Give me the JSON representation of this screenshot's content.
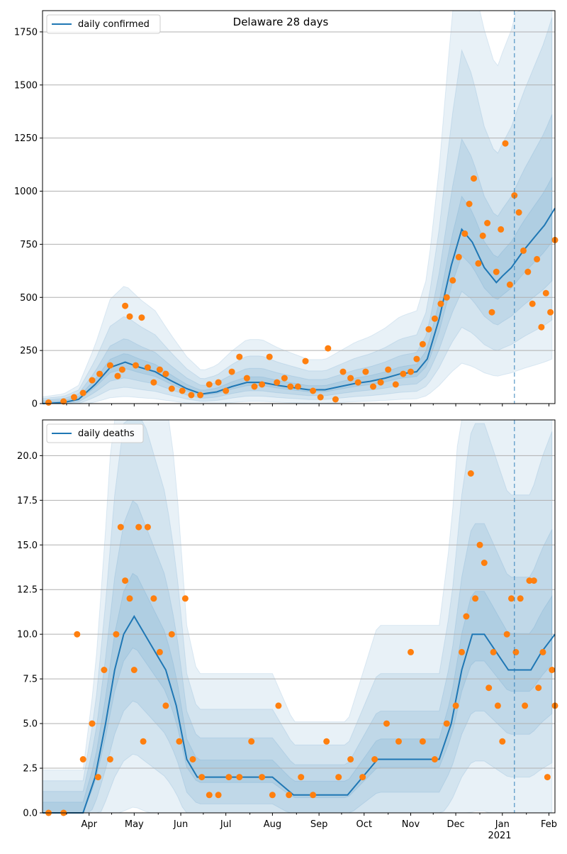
{
  "chart_data": [
    {
      "type": "line",
      "title": "Delaware 28 days",
      "legend": {
        "placement": "top-left",
        "entries": [
          "daily confirmed"
        ]
      },
      "grid": {
        "y": true,
        "x": false
      },
      "xlabel": "",
      "ylabel": "",
      "xlim": [
        "2020-03-01",
        "2021-02-05"
      ],
      "ylim": [
        0,
        1850
      ],
      "yticks": [
        0,
        250,
        500,
        750,
        1000,
        1250,
        1500,
        1750
      ],
      "ytick_labels": [
        "0",
        "250",
        "500",
        "750",
        "1000",
        "1250",
        "1500",
        "1750"
      ],
      "xticks": [
        "2020-04-01",
        "2020-05-01",
        "2020-06-01",
        "2020-07-01",
        "2020-08-01",
        "2020-09-01",
        "2020-10-01",
        "2020-11-01",
        "2020-12-01",
        "2021-01-01",
        "2021-02-01"
      ],
      "xtick_labels": [],
      "vline_date": "2021-01-09",
      "colors": {
        "line": "#1f77b4",
        "points": "#ff7f0e",
        "band": "#1f77b4",
        "vline": "#1f77b4"
      },
      "series": [
        {
          "name": "daily confirmed",
          "kind": "line",
          "x": [
            "2020-03-01",
            "2020-03-15",
            "2020-03-25",
            "2020-04-05",
            "2020-04-15",
            "2020-04-25",
            "2020-05-05",
            "2020-05-15",
            "2020-05-25",
            "2020-06-05",
            "2020-06-15",
            "2020-06-25",
            "2020-07-05",
            "2020-07-15",
            "2020-07-25",
            "2020-08-05",
            "2020-08-15",
            "2020-08-25",
            "2020-09-05",
            "2020-09-15",
            "2020-09-25",
            "2020-10-05",
            "2020-10-15",
            "2020-10-25",
            "2020-11-05",
            "2020-11-12",
            "2020-11-20",
            "2020-11-28",
            "2020-12-05",
            "2020-12-12",
            "2020-12-20",
            "2020-12-28",
            "2021-01-01",
            "2021-01-07",
            "2021-01-15",
            "2021-01-22",
            "2021-01-29",
            "2021-02-05"
          ],
          "values": [
            0,
            5,
            20,
            90,
            170,
            195,
            170,
            150,
            110,
            70,
            45,
            55,
            80,
            100,
            100,
            85,
            75,
            65,
            65,
            80,
            95,
            105,
            120,
            140,
            150,
            210,
            400,
            650,
            820,
            760,
            640,
            570,
            600,
            640,
            720,
            780,
            840,
            920
          ]
        },
        {
          "name": "",
          "kind": "scatter",
          "x": [
            "2020-03-05",
            "2020-03-15",
            "2020-03-22",
            "2020-03-28",
            "2020-04-03",
            "2020-04-08",
            "2020-04-15",
            "2020-04-20",
            "2020-04-23",
            "2020-04-25",
            "2020-04-28",
            "2020-05-02",
            "2020-05-06",
            "2020-05-10",
            "2020-05-14",
            "2020-05-18",
            "2020-05-22",
            "2020-05-26",
            "2020-06-02",
            "2020-06-08",
            "2020-06-14",
            "2020-06-20",
            "2020-06-26",
            "2020-07-01",
            "2020-07-05",
            "2020-07-10",
            "2020-07-15",
            "2020-07-20",
            "2020-07-25",
            "2020-07-30",
            "2020-08-04",
            "2020-08-09",
            "2020-08-13",
            "2020-08-18",
            "2020-08-23",
            "2020-08-28",
            "2020-09-02",
            "2020-09-07",
            "2020-09-12",
            "2020-09-17",
            "2020-09-22",
            "2020-09-27",
            "2020-10-02",
            "2020-10-07",
            "2020-10-12",
            "2020-10-17",
            "2020-10-22",
            "2020-10-27",
            "2020-11-01",
            "2020-11-05",
            "2020-11-09",
            "2020-11-13",
            "2020-11-17",
            "2020-11-21",
            "2020-11-25",
            "2020-11-29",
            "2020-12-03",
            "2020-12-07",
            "2020-12-10",
            "2020-12-13",
            "2020-12-16",
            "2020-12-19",
            "2020-12-22",
            "2020-12-25",
            "2020-12-28",
            "2020-12-31",
            "2021-01-03",
            "2021-01-06",
            "2021-01-09",
            "2021-01-12",
            "2021-01-15",
            "2021-01-18",
            "2021-01-21",
            "2021-01-24",
            "2021-01-27",
            "2021-01-30",
            "2021-02-02",
            "2021-02-05"
          ],
          "values": [
            5,
            10,
            30,
            50,
            110,
            140,
            180,
            130,
            160,
            460,
            410,
            180,
            405,
            170,
            100,
            160,
            140,
            70,
            60,
            40,
            40,
            90,
            100,
            60,
            150,
            220,
            120,
            80,
            90,
            220,
            100,
            120,
            80,
            80,
            200,
            60,
            30,
            260,
            20,
            150,
            120,
            100,
            150,
            80,
            100,
            160,
            90,
            140,
            150,
            210,
            280,
            350,
            400,
            470,
            500,
            580,
            690,
            800,
            940,
            1060,
            660,
            790,
            850,
            430,
            620,
            820,
            1225,
            560,
            980,
            900,
            720,
            620,
            470,
            680,
            360,
            520,
            430,
            770
          ]
        }
      ]
    },
    {
      "type": "line",
      "title": "",
      "legend": {
        "placement": "top-left",
        "entries": [
          "daily deaths"
        ]
      },
      "grid": {
        "y": true,
        "x": false
      },
      "xlabel": "",
      "ylabel": "",
      "xlim": [
        "2020-03-01",
        "2021-02-05"
      ],
      "ylim": [
        0,
        22
      ],
      "yticks": [
        0,
        2.5,
        5,
        7.5,
        10,
        12.5,
        15,
        17.5,
        20
      ],
      "ytick_labels": [
        "0.0",
        "2.5",
        "5.0",
        "7.5",
        "10.0",
        "12.5",
        "15.0",
        "17.5",
        "20.0"
      ],
      "xticks": [
        "2020-04-01",
        "2020-05-01",
        "2020-06-01",
        "2020-07-01",
        "2020-08-01",
        "2020-09-01",
        "2020-10-01",
        "2020-11-01",
        "2020-12-01",
        "2021-01-01",
        "2021-02-01"
      ],
      "xtick_labels": [
        "Apr",
        "May",
        "Jun",
        "Jul",
        "Aug",
        "Sep",
        "Oct",
        "Nov",
        "Dec",
        "Jan",
        "Feb"
      ],
      "xtick_year": "2021",
      "vline_date": "2021-01-09",
      "colors": {
        "line": "#1f77b4",
        "points": "#ff7f0e",
        "band": "#1f77b4",
        "vline": "#1f77b4"
      },
      "series": [
        {
          "name": "daily deaths",
          "kind": "line",
          "x": [
            "2020-03-01",
            "2020-03-20",
            "2020-03-28",
            "2020-04-05",
            "2020-04-12",
            "2020-04-18",
            "2020-04-24",
            "2020-05-01",
            "2020-05-08",
            "2020-05-15",
            "2020-05-22",
            "2020-05-29",
            "2020-06-05",
            "2020-06-12",
            "2020-06-20",
            "2020-06-30",
            "2020-07-15",
            "2020-08-01",
            "2020-08-15",
            "2020-08-25",
            "2020-09-05",
            "2020-09-20",
            "2020-09-30",
            "2020-10-10",
            "2020-10-20",
            "2020-10-30",
            "2020-11-10",
            "2020-11-20",
            "2020-11-28",
            "2020-12-05",
            "2020-12-12",
            "2020-12-20",
            "2020-12-28",
            "2021-01-05",
            "2021-01-12",
            "2021-01-20",
            "2021-01-27",
            "2021-02-05"
          ],
          "values": [
            0,
            0,
            0,
            2,
            5,
            8,
            10,
            11,
            10,
            9,
            8,
            6,
            3,
            2,
            2,
            2,
            2,
            2,
            1,
            1,
            1,
            1,
            2,
            3,
            3,
            3,
            3,
            3,
            5,
            8,
            10,
            10,
            9,
            8,
            8,
            8,
            9,
            10
          ]
        },
        {
          "name": "",
          "kind": "scatter",
          "x": [
            "2020-03-05",
            "2020-03-15",
            "2020-03-24",
            "2020-03-28",
            "2020-04-03",
            "2020-04-07",
            "2020-04-11",
            "2020-04-15",
            "2020-04-19",
            "2020-04-22",
            "2020-04-25",
            "2020-04-28",
            "2020-05-01",
            "2020-05-04",
            "2020-05-07",
            "2020-05-10",
            "2020-05-14",
            "2020-05-18",
            "2020-05-22",
            "2020-05-26",
            "2020-05-31",
            "2020-06-04",
            "2020-06-09",
            "2020-06-15",
            "2020-06-20",
            "2020-06-26",
            "2020-07-03",
            "2020-07-10",
            "2020-07-18",
            "2020-07-25",
            "2020-08-01",
            "2020-08-05",
            "2020-08-12",
            "2020-08-20",
            "2020-08-28",
            "2020-09-06",
            "2020-09-14",
            "2020-09-22",
            "2020-09-30",
            "2020-10-08",
            "2020-10-16",
            "2020-10-24",
            "2020-11-01",
            "2020-11-09",
            "2020-11-17",
            "2020-11-25",
            "2020-12-01",
            "2020-12-05",
            "2020-12-08",
            "2020-12-11",
            "2020-12-14",
            "2020-12-17",
            "2020-12-20",
            "2020-12-23",
            "2020-12-26",
            "2020-12-29",
            "2021-01-01",
            "2021-01-04",
            "2021-01-07",
            "2021-01-10",
            "2021-01-13",
            "2021-01-16",
            "2021-01-19",
            "2021-01-22",
            "2021-01-25",
            "2021-01-28",
            "2021-01-31",
            "2021-02-03",
            "2021-02-05"
          ],
          "values": [
            0,
            0,
            10,
            3,
            5,
            2,
            8,
            3,
            10,
            16,
            13,
            12,
            8,
            16,
            4,
            16,
            12,
            9,
            6,
            10,
            4,
            12,
            3,
            2,
            1,
            1,
            2,
            2,
            4,
            2,
            1,
            6,
            1,
            2,
            1,
            4,
            2,
            3,
            2,
            3,
            5,
            4,
            9,
            4,
            3,
            5,
            6,
            9,
            11,
            19,
            12,
            15,
            14,
            7,
            9,
            6,
            4,
            10,
            12,
            9,
            12,
            6,
            13,
            13,
            7,
            9,
            2,
            8,
            6
          ]
        }
      ]
    }
  ]
}
